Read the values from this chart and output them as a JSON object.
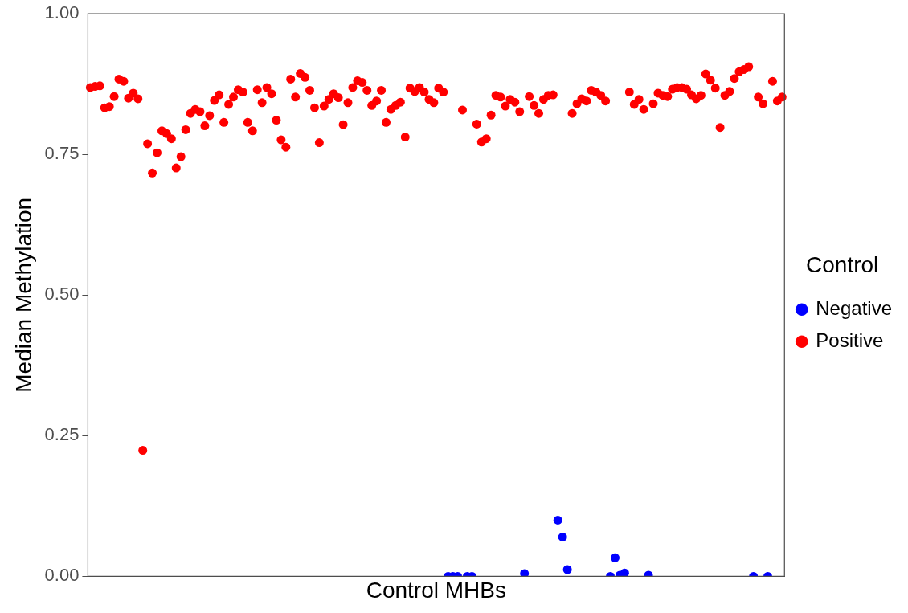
{
  "chart_data": {
    "type": "scatter",
    "xlabel": "Control MHBs",
    "ylabel": "Median Methylation",
    "legend_title": "Control",
    "legend": "right",
    "grid": false,
    "marker": "circle",
    "tick_labels": "y",
    "ylim": [
      0,
      1
    ],
    "yticks": [
      {
        "value": 0,
        "label": "0.00"
      },
      {
        "value": 0.25,
        "label": "0.25"
      },
      {
        "value": 0.5,
        "label": "0.50"
      },
      {
        "value": 0.75,
        "label": "0.75"
      },
      {
        "value": 1,
        "label": "1.00"
      }
    ],
    "categories": [
      null,
      null,
      null,
      null,
      null,
      null,
      null,
      null,
      null,
      null,
      null,
      null,
      null,
      null,
      null,
      null,
      null,
      null,
      null,
      null,
      null,
      null,
      null,
      null,
      null,
      null,
      null,
      null,
      null,
      null,
      null,
      null,
      null,
      null,
      null,
      null,
      null,
      null,
      null,
      null,
      null,
      null,
      null,
      null,
      null,
      null,
      null,
      null,
      null,
      null,
      null,
      null,
      null,
      null,
      null,
      null,
      null,
      null,
      null,
      null,
      null,
      null,
      null,
      null,
      null,
      null,
      null,
      null,
      null,
      null,
      null,
      null,
      null,
      null,
      null,
      null,
      null,
      null,
      null,
      null,
      null,
      null,
      null,
      null,
      null,
      null,
      null,
      null,
      null,
      null,
      null,
      null,
      null,
      null,
      null,
      null,
      null,
      null,
      null,
      null,
      null,
      null,
      null,
      null,
      null,
      null,
      null,
      null,
      null,
      null,
      null,
      null,
      null,
      null,
      null,
      null,
      null,
      null,
      null,
      null,
      null,
      null,
      null,
      null,
      null,
      null,
      null,
      null,
      null,
      null,
      null,
      null,
      null,
      null,
      null,
      null,
      null,
      null,
      null,
      null,
      null,
      null,
      null,
      null,
      null,
      null
    ],
    "series": [
      {
        "name": "Negative",
        "color": "#0000ff",
        "values": [
          null,
          null,
          null,
          null,
          null,
          null,
          null,
          null,
          null,
          null,
          null,
          null,
          null,
          null,
          null,
          null,
          null,
          null,
          null,
          null,
          null,
          null,
          null,
          null,
          null,
          null,
          null,
          null,
          null,
          null,
          null,
          null,
          null,
          null,
          null,
          null,
          null,
          null,
          null,
          null,
          null,
          null,
          null,
          null,
          null,
          null,
          null,
          null,
          null,
          null,
          null,
          null,
          null,
          null,
          null,
          null,
          null,
          null,
          null,
          null,
          null,
          null,
          null,
          null,
          null,
          null,
          null,
          null,
          null,
          null,
          null,
          null,
          null,
          null,
          null,
          0,
          0,
          0,
          null,
          0,
          0,
          null,
          null,
          null,
          null,
          null,
          null,
          null,
          null,
          null,
          null,
          0.005,
          null,
          null,
          null,
          null,
          null,
          null,
          0.1,
          0.07,
          0.012,
          null,
          null,
          null,
          null,
          null,
          null,
          null,
          null,
          0,
          0.033,
          0.002,
          0.006,
          null,
          null,
          null,
          null,
          0.002,
          null,
          null,
          null,
          null,
          null,
          null,
          null,
          null,
          null,
          null,
          null,
          null,
          null,
          null,
          null,
          null,
          null,
          null,
          null,
          null,
          null,
          0,
          null,
          null,
          0,
          null,
          null,
          null
        ]
      },
      {
        "name": "Positive",
        "color": "#ff0000",
        "values": [
          0.869,
          0.871,
          0.872,
          0.833,
          0.835,
          0.853,
          0.884,
          0.88,
          0.85,
          0.859,
          0.849,
          0.224,
          0.769,
          0.717,
          0.753,
          0.792,
          0.787,
          0.778,
          0.726,
          0.746,
          0.794,
          0.823,
          0.83,
          0.826,
          0.801,
          0.819,
          0.846,
          0.856,
          0.807,
          0.839,
          0.852,
          0.865,
          0.861,
          0.807,
          0.792,
          0.865,
          0.842,
          0.869,
          0.858,
          0.811,
          0.776,
          0.763,
          0.884,
          0.852,
          0.894,
          0.887,
          0.864,
          0.833,
          0.771,
          0.836,
          0.848,
          0.858,
          0.851,
          0.803,
          0.842,
          0.869,
          0.881,
          0.878,
          0.864,
          0.837,
          0.845,
          0.864,
          0.807,
          0.83,
          0.837,
          0.843,
          0.781,
          0.868,
          0.862,
          0.869,
          0.861,
          0.848,
          0.842,
          0.868,
          0.861,
          null,
          null,
          null,
          0.829,
          null,
          null,
          0.804,
          0.772,
          0.778,
          0.82,
          0.855,
          0.852,
          0.836,
          0.848,
          0.843,
          0.826,
          null,
          0.853,
          0.837,
          0.823,
          0.848,
          0.855,
          0.856,
          null,
          null,
          null,
          0.823,
          0.84,
          0.849,
          0.845,
          0.864,
          0.861,
          0.855,
          0.845,
          null,
          null,
          null,
          null,
          0.861,
          0.839,
          0.848,
          0.83,
          null,
          0.84,
          0.859,
          0.855,
          0.853,
          0.866,
          0.869,
          0.869,
          0.866,
          0.856,
          0.849,
          0.855,
          0.893,
          0.882,
          0.868,
          0.798,
          0.855,
          0.862,
          0.885,
          0.897,
          0.901,
          0.906,
          null,
          0.852,
          0.84,
          null,
          0.88,
          0.845,
          0.852
        ]
      }
    ]
  }
}
